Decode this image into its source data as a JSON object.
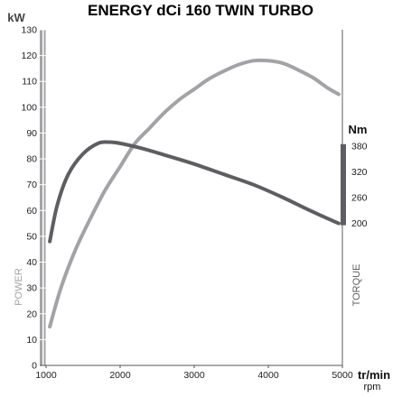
{
  "chart_data": {
    "type": "line",
    "title": "ENERGY dCi 160 TWIN TURBO",
    "x_axis": {
      "unit": "tr/min",
      "unit_sub": "rpm",
      "range": [
        1000,
        5000
      ],
      "ticks": [
        1000,
        2000,
        3000,
        4000,
        5000
      ]
    },
    "y_axis_left": {
      "unit": "kW",
      "name": "POWER",
      "range": [
        0,
        130
      ],
      "ticks": [
        0,
        10,
        20,
        30,
        40,
        50,
        60,
        70,
        80,
        90,
        100,
        110,
        120,
        130
      ]
    },
    "y_axis_right": {
      "unit": "Nm",
      "name": "TORQUE",
      "ticks": [
        200,
        260,
        320,
        380
      ],
      "tick_positions_kw": [
        55,
        65,
        75,
        85
      ]
    },
    "grid": false,
    "series": [
      {
        "name": "POWER",
        "axis": "left",
        "color": "#a3a3a7",
        "x": [
          1050,
          1200,
          1400,
          1600,
          1800,
          2000,
          2200,
          2400,
          2600,
          2800,
          3000,
          3200,
          3400,
          3600,
          3800,
          4000,
          4200,
          4400,
          4600,
          4800,
          4950
        ],
        "y": [
          15,
          30,
          45,
          57,
          68,
          77,
          86,
          92,
          98,
          103,
          107,
          111,
          114,
          116.5,
          118,
          118,
          117,
          114.5,
          111.5,
          107.5,
          105
        ]
      },
      {
        "name": "TORQUE",
        "axis": "right",
        "color": "#5e5e62",
        "x": [
          1050,
          1150,
          1300,
          1500,
          1700,
          1850,
          2000,
          2300,
          2600,
          3000,
          3400,
          3800,
          4200,
          4600,
          4950
        ],
        "y": [
          48,
          62,
          74,
          82,
          86,
          86.5,
          86,
          84,
          81.5,
          78,
          74,
          70,
          65,
          59.5,
          55
        ]
      }
    ],
    "colors": {
      "left_axis": "#a3a3a7",
      "right_axis": "#5e5e62",
      "torque_range_bar": "#5e5e62"
    }
  }
}
